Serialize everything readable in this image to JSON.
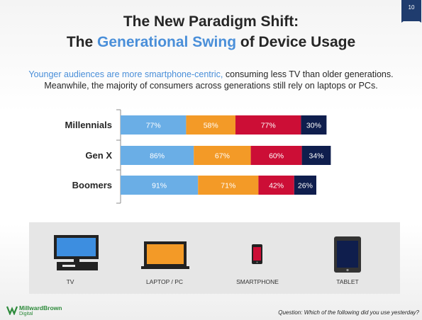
{
  "page_number": "10",
  "title": {
    "line1": "The New Paradigm Shift:",
    "line2_prefix": "The ",
    "line2_accent": "Generational Swing",
    "line2_suffix": " of Device Usage"
  },
  "subtitle": {
    "line1_accent": "Younger audiences are more smartphone-centric,",
    "line1_rest": " consuming less TV than older generations.",
    "line2": "Meanwhile, the majority of consumers across generations still rely on laptops or PCs."
  },
  "chart_data": {
    "type": "bar",
    "orientation": "horizontal",
    "stacked": true,
    "categories": [
      "Millennials",
      "Gen X",
      "Boomers"
    ],
    "series": [
      {
        "name": "TV",
        "values": [
          77,
          86,
          91
        ],
        "labels": [
          "77%",
          "86%",
          "91%"
        ],
        "color": "#6aaee6",
        "label_color": "#ffffff"
      },
      {
        "name": "LAPTOP / PC",
        "values": [
          58,
          67,
          71
        ],
        "labels": [
          "58%",
          "67%",
          "71%"
        ],
        "color": "#f39a27",
        "label_color": "#ffffff"
      },
      {
        "name": "SMARTPHONE",
        "values": [
          77,
          60,
          42
        ],
        "labels": [
          "77%",
          "60%",
          "42%"
        ],
        "color": "#cc0e36",
        "label_color": "#ffffff"
      },
      {
        "name": "TABLET",
        "values": [
          30,
          34,
          26
        ],
        "labels": [
          "30%",
          "34%",
          "26%"
        ],
        "color": "#0f1e4d",
        "label_color": "#ffffff"
      }
    ],
    "grid": false,
    "legend": "bottom (device icons)"
  },
  "devices": [
    {
      "label": "TV",
      "icon": "tv-icon",
      "color": "#3d8ee0"
    },
    {
      "label": "LAPTOP / PC",
      "icon": "laptop-icon",
      "color": "#f39a27"
    },
    {
      "label": "SMARTPHONE",
      "icon": "smartphone-icon",
      "color": "#cc0e36"
    },
    {
      "label": "TABLET",
      "icon": "tablet-icon",
      "color": "#0f1e4d"
    }
  ],
  "brand": {
    "name": "MillwardBrown",
    "sub": "Digital"
  },
  "question": "Question:  Which of the following did you use yesterday?"
}
